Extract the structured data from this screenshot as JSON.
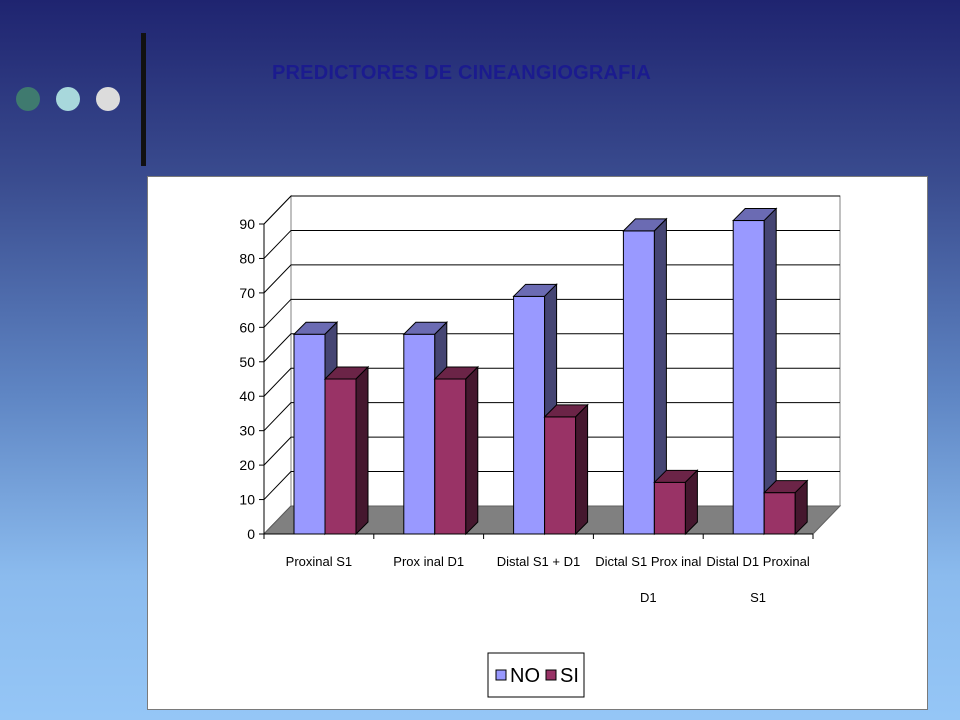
{
  "title": "PREDICTORES DE CINEANGIOGRAFIA",
  "chart_data": {
    "type": "bar",
    "categories": [
      [
        "Proxinal S1"
      ],
      [
        "Prox inal D1"
      ],
      [
        "Distal S1 + D1"
      ],
      [
        "Dictal S1  Prox inal",
        "D1"
      ],
      [
        "Distal D1  Proxinal",
        "S1"
      ]
    ],
    "series": [
      {
        "name": "NO",
        "values": [
          58,
          58,
          69,
          88,
          91
        ],
        "color": "#9999ff"
      },
      {
        "name": "SI",
        "values": [
          45,
          45,
          34,
          15,
          12
        ],
        "color": "#993366"
      }
    ],
    "ylim": [
      0,
      90
    ],
    "yticks": [
      0,
      10,
      20,
      30,
      40,
      50,
      60,
      70,
      80,
      90
    ],
    "legend_position": "bottom",
    "grid": true,
    "three_d": true
  }
}
